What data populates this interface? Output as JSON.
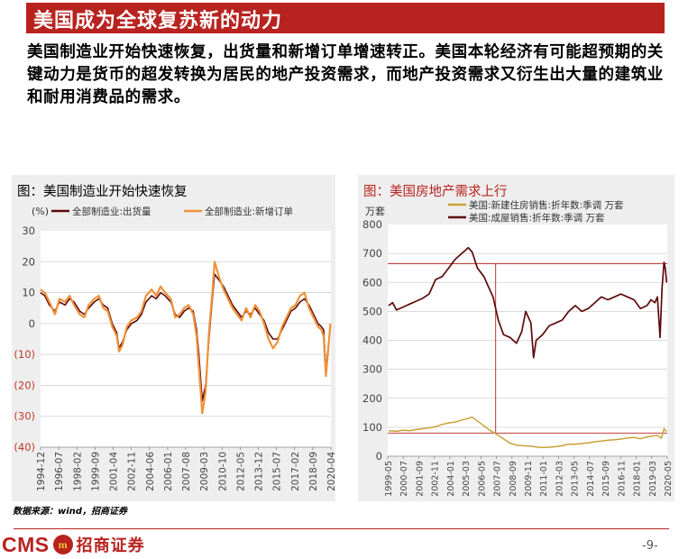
{
  "header": {
    "title": "美国成为全球复苏新的动力"
  },
  "body_text": "美国制造业开始快速恢复，出货量和新增订单增速转正。美国本轮经济有可能超预期的关键动力是货币的超发转换为居民的地产投资需求，而地产投资需求又衍生出大量的建筑业和耐用消费品的需求。",
  "source": "数据来源：wind，招商证券",
  "footer": {
    "logo_text": "CMS",
    "logo_mark": "m",
    "logo_name": "招商证券",
    "page_number": "-9-"
  },
  "colors": {
    "brand_red": "#b8231f",
    "shipments": "#5c0a0a",
    "new_orders": "#f0913a",
    "new_home_sales": "#c9a23a",
    "existing_home_sales": "#5c0a0a"
  },
  "chart_data": [
    {
      "type": "line",
      "title": "图：美国制造业开始快速恢复",
      "ylabel": "(%)",
      "ylim": [
        -40,
        30
      ],
      "yticks": [
        "30",
        "20",
        "10",
        "0",
        "(10)",
        "(20)",
        "(30)",
        "(40)"
      ],
      "xlim": [
        1994.92,
        2020.75
      ],
      "xticks": [
        "1994-12",
        "1996-07",
        "1998-02",
        "1999-09",
        "2001-04",
        "2002-11",
        "2004-06",
        "2006-01",
        "2007-08",
        "2009-03",
        "2010-10",
        "2012-05",
        "2013-12",
        "2015-07",
        "2017-02",
        "2018-09",
        "2020-04"
      ],
      "legend_position": "top",
      "series": [
        {
          "name": "全部制造业:出货量",
          "x": [
            1994.9,
            1995.3,
            1995.7,
            1996.2,
            1996.6,
            1997.1,
            1997.5,
            1997.9,
            1998.4,
            1998.8,
            1999.2,
            1999.7,
            2000.1,
            2000.5,
            2000.9,
            2001.3,
            2001.7,
            2001.9,
            2002.2,
            2002.6,
            2003.0,
            2003.5,
            2003.9,
            2004.3,
            2004.8,
            2005.2,
            2005.6,
            2006.0,
            2006.5,
            2006.9,
            2007.3,
            2007.7,
            2008.1,
            2008.5,
            2008.8,
            2009.0,
            2009.3,
            2009.6,
            2009.9,
            2010.2,
            2010.4,
            2010.8,
            2011.2,
            2011.6,
            2012.0,
            2012.4,
            2012.8,
            2013.2,
            2013.6,
            2014.0,
            2014.4,
            2014.8,
            2015.2,
            2015.6,
            2016.0,
            2016.4,
            2016.8,
            2017.2,
            2017.6,
            2018.0,
            2018.4,
            2018.8,
            2019.2,
            2019.6,
            2019.9,
            2020.1,
            2020.3,
            2020.5,
            2020.7
          ],
          "values": [
            10,
            9,
            6,
            4,
            7,
            6,
            8,
            7,
            4,
            3,
            5,
            7,
            8,
            6,
            5,
            0,
            -3,
            -8,
            -6,
            -2,
            0,
            1,
            3,
            7,
            9,
            8,
            10,
            9,
            7,
            3,
            2,
            4,
            5,
            4,
            -2,
            -10,
            -25,
            -20,
            -5,
            8,
            16,
            14,
            12,
            9,
            6,
            4,
            2,
            4,
            3,
            5,
            3,
            1,
            -3,
            -5,
            -5,
            -2,
            1,
            4,
            5,
            7,
            8,
            6,
            3,
            0,
            -1,
            -2,
            -15,
            -8,
            -1
          ]
        },
        {
          "name": "全部制造业:新增订单",
          "x": [
            1994.9,
            1995.3,
            1995.7,
            1996.2,
            1996.6,
            1997.1,
            1997.5,
            1997.9,
            1998.4,
            1998.8,
            1999.2,
            1999.7,
            2000.1,
            2000.5,
            2000.9,
            2001.3,
            2001.7,
            2001.9,
            2002.2,
            2002.6,
            2003.0,
            2003.5,
            2003.9,
            2004.3,
            2004.8,
            2005.2,
            2005.6,
            2006.0,
            2006.5,
            2006.9,
            2007.3,
            2007.7,
            2008.1,
            2008.5,
            2008.8,
            2009.0,
            2009.3,
            2009.6,
            2009.9,
            2010.2,
            2010.4,
            2010.8,
            2011.2,
            2011.6,
            2012.0,
            2012.4,
            2012.8,
            2013.2,
            2013.6,
            2014.0,
            2014.4,
            2014.8,
            2015.2,
            2015.6,
            2016.0,
            2016.4,
            2016.8,
            2017.2,
            2017.6,
            2018.0,
            2018.4,
            2018.8,
            2019.2,
            2019.6,
            2019.9,
            2020.1,
            2020.3,
            2020.5,
            2020.7
          ],
          "values": [
            11,
            10,
            7,
            3,
            8,
            7,
            9,
            6,
            3,
            2,
            6,
            8,
            9,
            5,
            4,
            -1,
            -4,
            -9,
            -7,
            -1,
            1,
            2,
            4,
            9,
            11,
            9,
            12,
            10,
            8,
            2,
            3,
            5,
            6,
            3,
            -4,
            -14,
            -29,
            -22,
            -3,
            10,
            20,
            15,
            11,
            8,
            5,
            3,
            1,
            5,
            2,
            6,
            4,
            0,
            -5,
            -8,
            -6,
            -1,
            2,
            5,
            6,
            9,
            10,
            5,
            2,
            -1,
            -2,
            -4,
            -17,
            -9,
            0
          ]
        }
      ]
    },
    {
      "type": "line",
      "title": "图：美国房地产需求上行",
      "ylabel": "万套",
      "ylim": [
        0,
        800
      ],
      "yticks": [
        "800",
        "700",
        "600",
        "500",
        "400",
        "300",
        "200",
        "100",
        "0"
      ],
      "xlim": [
        1999.33,
        2020.75
      ],
      "xticks": [
        "1999-05",
        "2000-07",
        "2001-09",
        "2002-11",
        "2004-01",
        "2005-03",
        "2006-05",
        "2007-07",
        "2008-09",
        "2009-11",
        "2011-01",
        "2012-03",
        "2013-05",
        "2014-07",
        "2015-09",
        "2016-11",
        "2018-01",
        "2019-03",
        "2020-05"
      ],
      "legend_position": "top",
      "annotations": {
        "reference_lines_y": [
          665,
          80
        ],
        "reference_line_x": 2007.6
      },
      "series": [
        {
          "name": "美国:新建住房销售:折年数:季调 万套",
          "x": [
            1999.4,
            2000.0,
            2000.5,
            2001.0,
            2001.5,
            2002.0,
            2002.5,
            2003.0,
            2003.5,
            2004.0,
            2004.5,
            2005.0,
            2005.5,
            2005.8,
            2006.2,
            2006.7,
            2007.2,
            2007.7,
            2008.2,
            2008.7,
            2009.2,
            2009.7,
            2010.2,
            2010.7,
            2011.2,
            2011.7,
            2012.2,
            2012.7,
            2013.2,
            2013.7,
            2014.2,
            2014.7,
            2015.2,
            2015.7,
            2016.2,
            2016.7,
            2017.2,
            2017.7,
            2018.2,
            2018.7,
            2019.2,
            2019.7,
            2020.0,
            2020.3,
            2020.5,
            2020.7
          ],
          "values": [
            88,
            86,
            90,
            88,
            92,
            95,
            98,
            102,
            110,
            115,
            118,
            125,
            130,
            135,
            122,
            105,
            88,
            75,
            60,
            45,
            38,
            36,
            35,
            32,
            30,
            31,
            33,
            36,
            42,
            41,
            44,
            46,
            50,
            52,
            55,
            57,
            59,
            63,
            65,
            60,
            67,
            70,
            72,
            62,
            95,
            85
          ]
        },
        {
          "name": "美国:成屋销售:折年数:季调 万套",
          "x": [
            1999.4,
            1999.7,
            2000.0,
            2000.5,
            2001.0,
            2001.5,
            2002.0,
            2002.5,
            2003.0,
            2003.5,
            2004.0,
            2004.5,
            2005.0,
            2005.5,
            2005.8,
            2006.2,
            2006.7,
            2007.0,
            2007.4,
            2007.8,
            2008.2,
            2008.7,
            2009.2,
            2009.6,
            2009.9,
            2010.3,
            2010.5,
            2010.7,
            2011.2,
            2011.7,
            2012.2,
            2012.7,
            2013.2,
            2013.7,
            2014.2,
            2014.7,
            2015.2,
            2015.7,
            2016.2,
            2016.7,
            2017.2,
            2017.7,
            2018.2,
            2018.7,
            2019.2,
            2019.5,
            2019.8,
            2020.0,
            2020.2,
            2020.35,
            2020.5,
            2020.6,
            2020.7
          ],
          "values": [
            520,
            530,
            505,
            515,
            525,
            535,
            545,
            560,
            610,
            620,
            650,
            680,
            700,
            720,
            705,
            650,
            620,
            590,
            550,
            470,
            420,
            410,
            390,
            430,
            500,
            460,
            340,
            400,
            420,
            450,
            460,
            470,
            500,
            520,
            500,
            510,
            530,
            550,
            540,
            550,
            560,
            550,
            540,
            510,
            520,
            540,
            530,
            550,
            410,
            580,
            670,
            650,
            600
          ]
        }
      ]
    }
  ]
}
